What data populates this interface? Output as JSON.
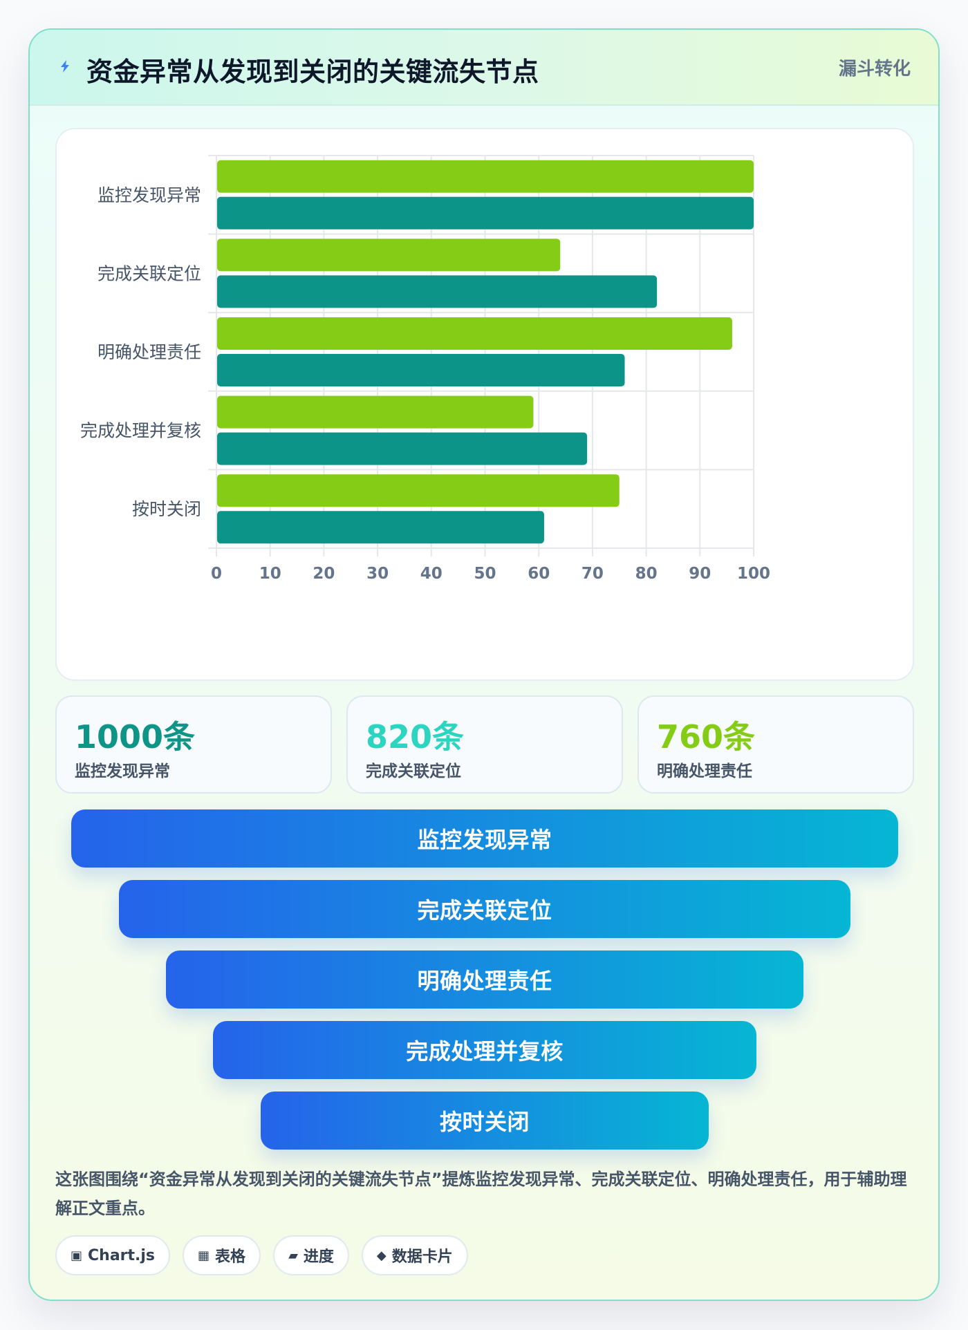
{
  "header": {
    "title": "资金异常从发现到关闭的关键流失节点",
    "tag": "漏斗转化"
  },
  "chart_data": {
    "type": "bar",
    "orientation": "horizontal",
    "categories": [
      "监控发现异常",
      "完成关联定位",
      "明确处理责任",
      "完成处理并复核",
      "按时关闭"
    ],
    "series": [
      {
        "color": "#84cc16",
        "values": [
          100,
          64,
          96,
          59,
          75
        ]
      },
      {
        "color": "#0d9488",
        "values": [
          100,
          82,
          76,
          69,
          61
        ]
      }
    ],
    "xlim": [
      0,
      100
    ],
    "xticks": [
      0,
      10,
      20,
      30,
      40,
      50,
      60,
      70,
      80,
      90,
      100
    ],
    "grid": true,
    "legend": "none"
  },
  "stats": [
    {
      "value": "1000条",
      "label": "监控发现异常",
      "color": "#0f9488"
    },
    {
      "value": "820条",
      "label": "完成关联定位",
      "color": "#2dd4bf"
    },
    {
      "value": "760条",
      "label": "明确处理责任",
      "color": "#84cc16"
    }
  ],
  "funnel": [
    "监控发现异常",
    "完成关联定位",
    "明确处理责任",
    "完成处理并复核",
    "按时关闭"
  ],
  "summary": "这张图围绕“资金异常从发现到关闭的关键流失节点”提炼监控发现异常、完成关联定位、明确处理责任，用于辅助理解正文重点。",
  "pills": [
    {
      "icon": "▣",
      "icon_name": "chart-icon",
      "label": "Chart.js"
    },
    {
      "icon": "▦",
      "icon_name": "table-icon",
      "label": "表格"
    },
    {
      "icon": "▰",
      "icon_name": "progress-icon",
      "label": "进度"
    },
    {
      "icon": "◆",
      "icon_name": "data-card-icon",
      "label": "数据卡片"
    }
  ],
  "colors": {
    "accent_green": "#84cc16",
    "accent_teal": "#0d9488",
    "funnel_start": "#2563eb",
    "funnel_end": "#06b6d4"
  }
}
